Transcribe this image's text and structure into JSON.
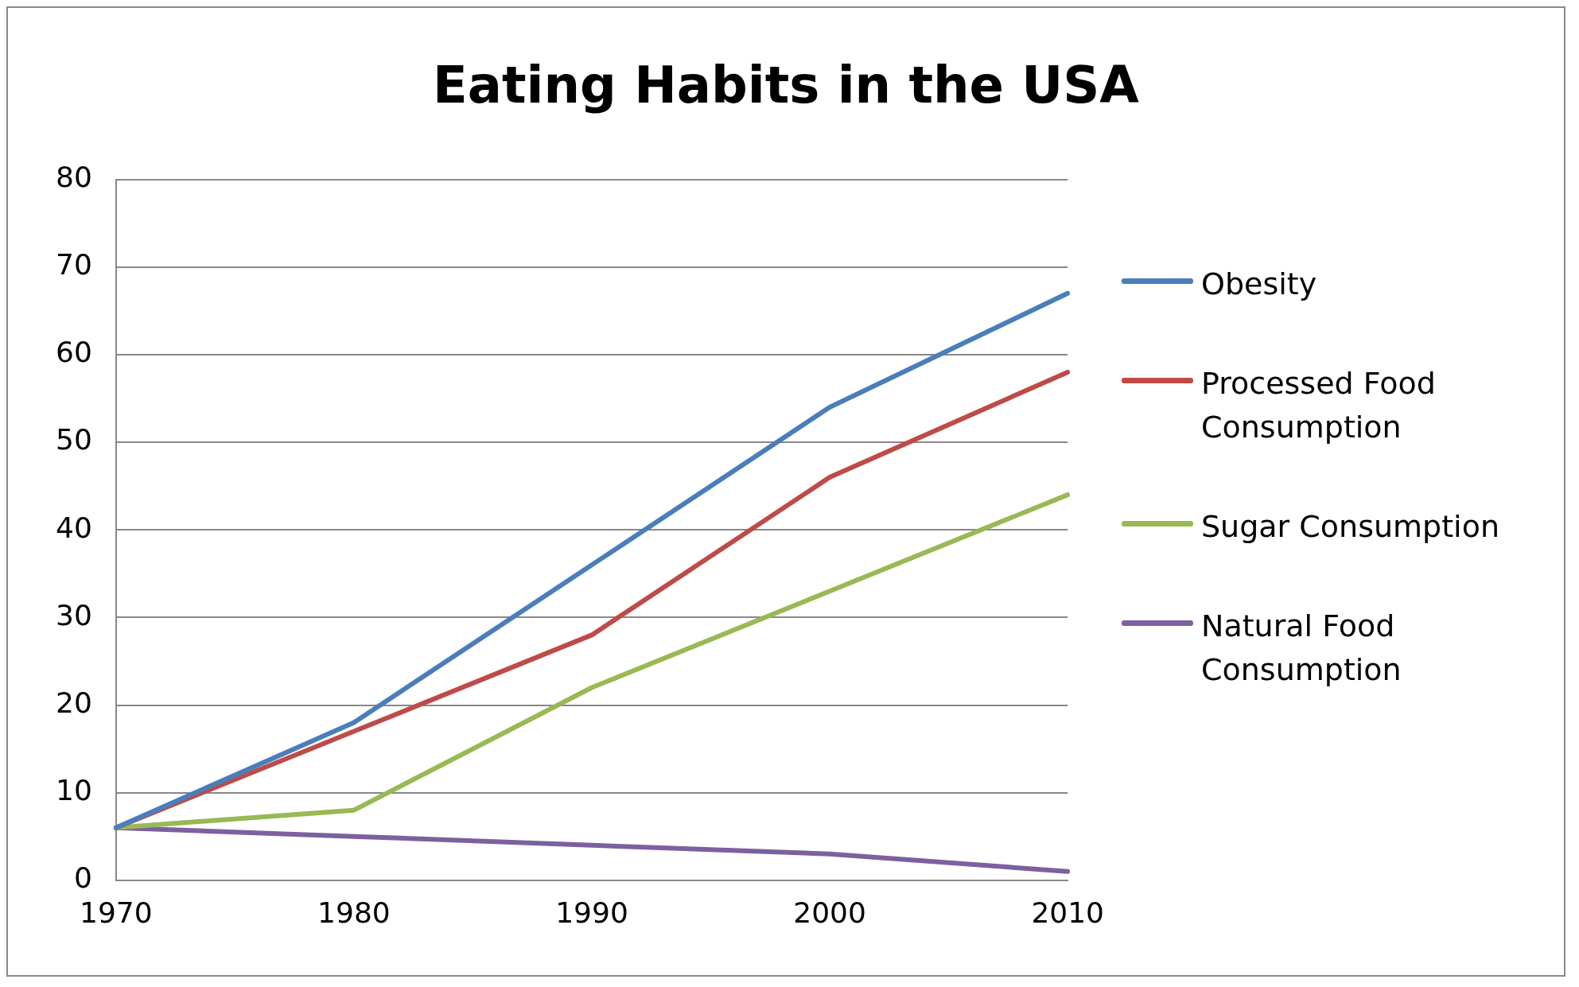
{
  "chart_data": {
    "type": "line",
    "title": "Eating Habits in the USA",
    "categories": [
      "1970",
      "1980",
      "1990",
      "2000",
      "2010"
    ],
    "series": [
      {
        "name": "Obesity",
        "color": "#4a7ebb",
        "values": [
          6,
          18,
          36,
          54,
          67
        ]
      },
      {
        "name": "Processed Food Consumption",
        "color": "#be4b48",
        "values": [
          6,
          17,
          28,
          46,
          58
        ]
      },
      {
        "name": "Sugar Consumption",
        "color": "#98b954",
        "values": [
          6,
          8,
          22,
          33,
          44
        ]
      },
      {
        "name": "Natural Food Consumption",
        "color": "#7d60a0",
        "values": [
          6,
          5,
          4,
          3,
          1
        ]
      }
    ],
    "ylim": [
      0,
      80
    ],
    "yticks": [
      0,
      10,
      20,
      30,
      40,
      50,
      60,
      70,
      80
    ],
    "grid": "y",
    "legend": "right",
    "marker": "none",
    "line_style": "solid"
  }
}
